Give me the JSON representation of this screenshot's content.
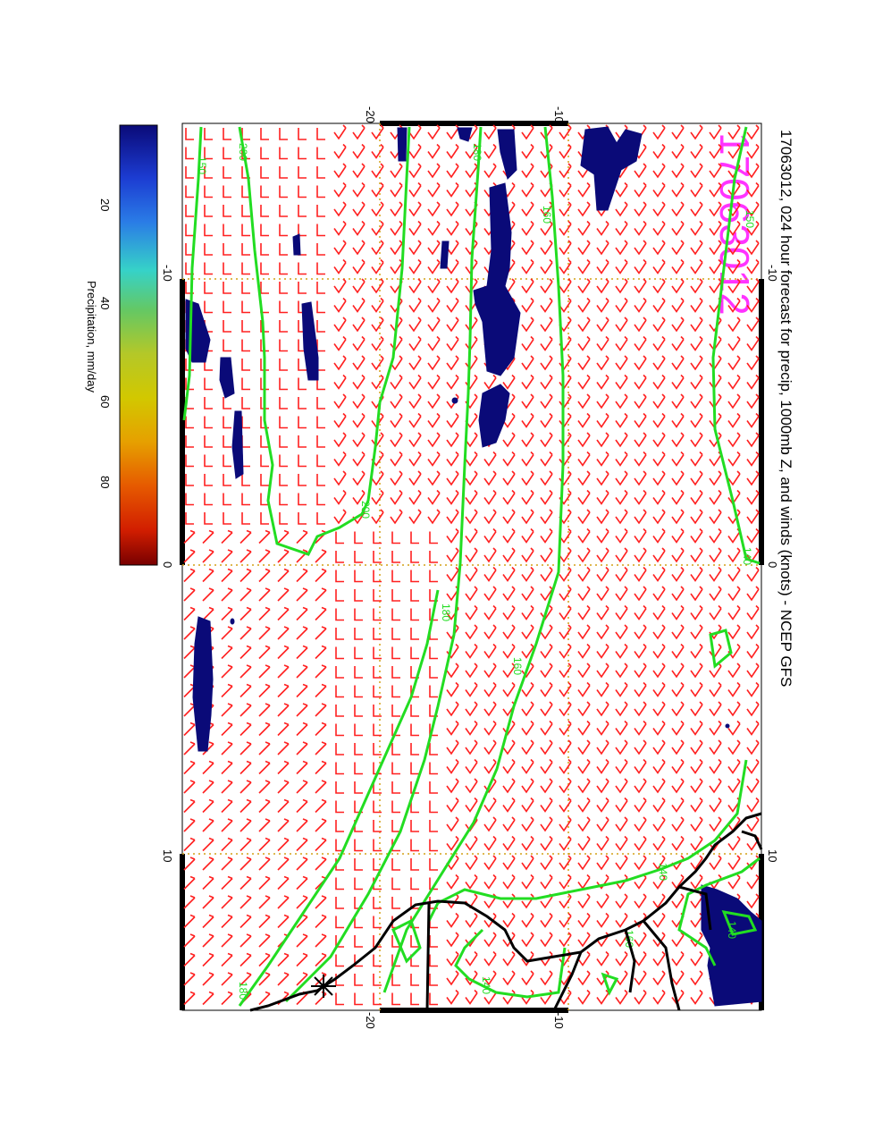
{
  "title": "17063012, 024 hour forecast for precip, 1000mb Z, and winds (knots) - NCEP GFS",
  "stamp": "17063012",
  "colorbar": {
    "label": "Precipitation, mm/day",
    "ticks": [
      "20",
      "40",
      "60",
      "80"
    ],
    "colors": [
      "#0a0a78",
      "#1c3cd2",
      "#22a0e6",
      "#36d2c8",
      "#64c864",
      "#b4c828",
      "#d2c800",
      "#e6a000",
      "#e65a00",
      "#d21e00",
      "#780000"
    ]
  },
  "axes": {
    "lat_ticks_top": [
      "-20",
      "-10"
    ],
    "lat_ticks_bottom": [
      "-20",
      "-10"
    ],
    "lon_ticks_left": [
      "-10",
      "0",
      "10"
    ],
    "lon_ticks_right": [
      "-10",
      "0",
      "10"
    ]
  },
  "contours": {
    "color": "#22dd22",
    "labels": [
      "150",
      "200",
      "180",
      "160",
      "150",
      "140",
      "200",
      "180",
      "160",
      "140",
      "160",
      "140",
      "180",
      "140"
    ]
  },
  "colors": {
    "wind_barb": "#ff2020",
    "precip_fill": "#0a0a78",
    "grid": "#d4a017",
    "coast": "#000000",
    "stamp": "#ff33ff"
  }
}
